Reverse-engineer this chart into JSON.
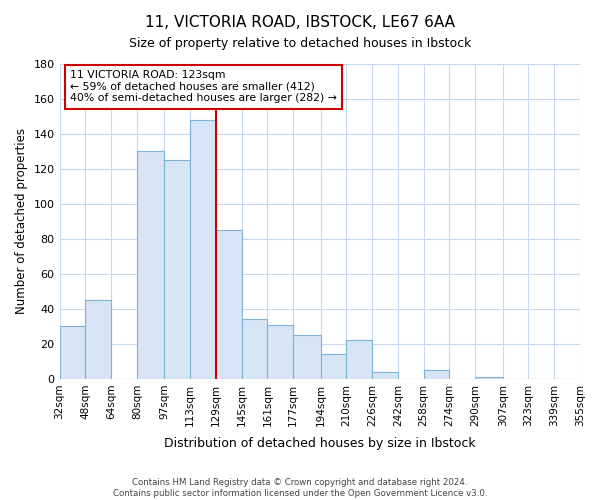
{
  "title_line1": "11, VICTORIA ROAD, IBSTOCK, LE67 6AA",
  "title_line2": "Size of property relative to detached houses in Ibstock",
  "xlabel": "Distribution of detached houses by size in Ibstock",
  "ylabel": "Number of detached properties",
  "bin_labels": [
    "32sqm",
    "48sqm",
    "64sqm",
    "80sqm",
    "97sqm",
    "113sqm",
    "129sqm",
    "145sqm",
    "161sqm",
    "177sqm",
    "194sqm",
    "210sqm",
    "226sqm",
    "242sqm",
    "258sqm",
    "274sqm",
    "290sqm",
    "307sqm",
    "323sqm",
    "339sqm",
    "355sqm"
  ],
  "bin_edges": [
    32,
    48,
    64,
    80,
    97,
    113,
    129,
    145,
    161,
    177,
    194,
    210,
    226,
    242,
    258,
    274,
    290,
    307,
    323,
    339,
    355
  ],
  "bar_values": [
    30,
    45,
    0,
    130,
    125,
    148,
    85,
    34,
    31,
    25,
    14,
    22,
    4,
    0,
    5,
    0,
    1,
    0,
    0,
    0
  ],
  "bar_fill_color": "#d6e4f5",
  "bar_edge_color": "#7eb3d8",
  "red_line_x": 129,
  "red_line_color": "#cc0000",
  "annotation_text_line1": "11 VICTORIA ROAD: 123sqm",
  "annotation_text_line2": "← 59% of detached houses are smaller (412)",
  "annotation_text_line3": "40% of semi-detached houses are larger (282) →",
  "footer_line1": "Contains HM Land Registry data © Crown copyright and database right 2024.",
  "footer_line2": "Contains public sector information licensed under the Open Government Licence v3.0.",
  "ylim": [
    0,
    180
  ],
  "yticks": [
    0,
    20,
    40,
    60,
    80,
    100,
    120,
    140,
    160,
    180
  ],
  "background_color": "#ffffff",
  "grid_color": "#c8d8f0"
}
